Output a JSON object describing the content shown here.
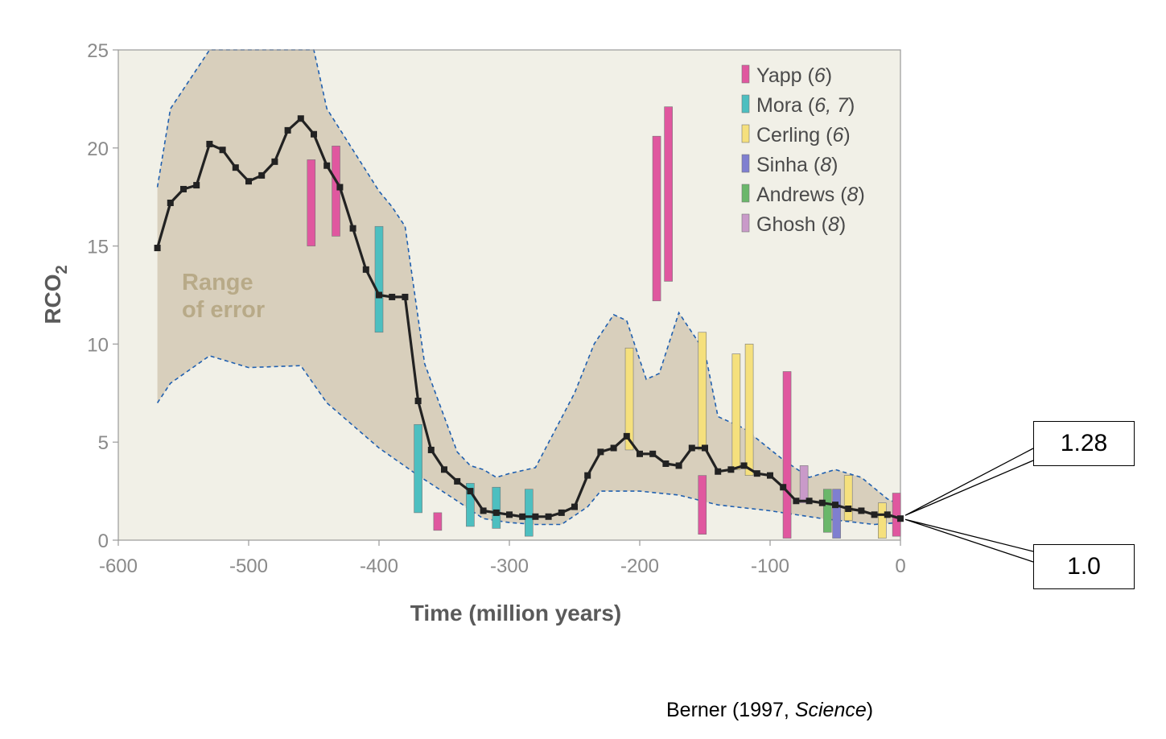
{
  "chart_data": {
    "type": "line",
    "xlabel": "Time (million years)",
    "ylabel_main": "RCO",
    "ylabel_sub": "2",
    "xlim": [
      -600,
      0
    ],
    "ylim": [
      0,
      25
    ],
    "xticks": [
      "-600",
      "-500",
      "-400",
      "-300",
      "-200",
      "-100",
      "0"
    ],
    "yticks": [
      "0",
      "5",
      "10",
      "15",
      "20",
      "25"
    ],
    "range_label": [
      "Range",
      "of error"
    ],
    "colors": {
      "plot_bg": "#f1f0e7",
      "band": "#d8cfbc",
      "line": "#222222",
      "dash": "#2060b0"
    },
    "series": [
      {
        "type": "line",
        "x": [
          -570,
          -560,
          -550,
          -540,
          -530,
          -520,
          -510,
          -500,
          -490,
          -480,
          -470,
          -460,
          -450,
          -440,
          -430,
          -420,
          -410,
          -400,
          -390,
          -380,
          -370,
          -360,
          -350,
          -340,
          -330,
          -320,
          -310,
          -300,
          -290,
          -280,
          -270,
          -260,
          -250,
          -240,
          -230,
          -220,
          -210,
          -200,
          -190,
          -180,
          -170,
          -160,
          -150,
          -140,
          -130,
          -120,
          -110,
          -100,
          -90,
          -80,
          -70,
          -60,
          -50,
          -40,
          -30,
          -20,
          -10,
          0
        ],
        "y": [
          14.9,
          17.2,
          17.9,
          18.1,
          20.2,
          19.9,
          19.0,
          18.3,
          18.6,
          19.3,
          20.9,
          21.5,
          20.7,
          19.1,
          18.0,
          15.9,
          13.8,
          12.5,
          12.4,
          12.4,
          7.1,
          4.6,
          3.6,
          3.0,
          2.5,
          1.5,
          1.4,
          1.3,
          1.2,
          1.2,
          1.2,
          1.4,
          1.7,
          3.3,
          4.5,
          4.7,
          5.3,
          4.4,
          4.4,
          3.9,
          3.8,
          4.7,
          4.7,
          3.5,
          3.6,
          3.8,
          3.4,
          3.3,
          2.7,
          2.0,
          2.0,
          1.9,
          1.8,
          1.6,
          1.5,
          1.3,
          1.3,
          1.1
        ]
      }
    ],
    "error_upper": {
      "x": [
        -570,
        -560,
        -530,
        -450,
        -440,
        -400,
        -390,
        -380,
        -365,
        -340,
        -330,
        -320,
        -310,
        -300,
        -280,
        -250,
        -235,
        -220,
        -210,
        -195,
        -185,
        -170,
        -150,
        -140,
        -120,
        -90,
        -70,
        -50,
        -30,
        -10,
        0
      ],
      "y": [
        18,
        22,
        25,
        25,
        22,
        17.8,
        17,
        16,
        9,
        4.5,
        3.8,
        3.6,
        3.2,
        3.4,
        3.7,
        7.5,
        10,
        11.5,
        11.2,
        8.2,
        8.5,
        11.6,
        9.6,
        6.3,
        5.7,
        4.1,
        3.2,
        3.6,
        3.2,
        2.1,
        1.8
      ]
    },
    "error_lower": {
      "x": [
        -570,
        -560,
        -530,
        -500,
        -460,
        -440,
        -400,
        -370,
        -340,
        -320,
        -300,
        -280,
        -260,
        -240,
        -230,
        -200,
        -170,
        -140,
        -100,
        -60,
        -20,
        0
      ],
      "y": [
        7,
        8,
        9.4,
        8.8,
        8.9,
        7,
        4.7,
        3.3,
        2,
        1.1,
        0.9,
        0.8,
        0.8,
        1.7,
        2.5,
        2.5,
        2.3,
        1.8,
        1.5,
        1.1,
        0.8,
        0.9
      ]
    },
    "proxy_bars": [
      {
        "x": -452,
        "y0": 15.0,
        "y1": 19.4,
        "color": "#e0579f"
      },
      {
        "x": -433,
        "y0": 15.5,
        "y1": 20.1,
        "color": "#e0579f"
      },
      {
        "x": -400,
        "y0": 10.6,
        "y1": 16.0,
        "color": "#4dbfc0"
      },
      {
        "x": -370,
        "y0": 1.4,
        "y1": 5.9,
        "color": "#4dbfc0"
      },
      {
        "x": -355,
        "y0": 0.5,
        "y1": 1.4,
        "color": "#e0579f"
      },
      {
        "x": -330,
        "y0": 0.7,
        "y1": 2.9,
        "color": "#4dbfc0"
      },
      {
        "x": -310,
        "y0": 0.6,
        "y1": 2.7,
        "color": "#4dbfc0"
      },
      {
        "x": -285,
        "y0": 0.2,
        "y1": 2.6,
        "color": "#4dbfc0"
      },
      {
        "x": -208,
        "y0": 4.6,
        "y1": 9.8,
        "color": "#f5e07d"
      },
      {
        "x": -187,
        "y0": 12.2,
        "y1": 20.6,
        "color": "#e0579f"
      },
      {
        "x": -178,
        "y0": 13.2,
        "y1": 22.1,
        "color": "#e0579f"
      },
      {
        "x": -152,
        "y0": 4.6,
        "y1": 10.6,
        "color": "#f5e07d"
      },
      {
        "x": -152,
        "y0": 0.3,
        "y1": 3.3,
        "color": "#e0579f"
      },
      {
        "x": -126,
        "y0": 3.6,
        "y1": 9.5,
        "color": "#f5e07d"
      },
      {
        "x": -116,
        "y0": 3.3,
        "y1": 10.0,
        "color": "#f5e07d"
      },
      {
        "x": -87,
        "y0": 0.1,
        "y1": 8.6,
        "color": "#e0579f"
      },
      {
        "x": -74,
        "y0": 1.9,
        "y1": 3.8,
        "color": "#c99ac9"
      },
      {
        "x": -56,
        "y0": 0.4,
        "y1": 2.6,
        "color": "#6ab76a"
      },
      {
        "x": -49,
        "y0": 0.1,
        "y1": 2.6,
        "color": "#7f7fd0"
      },
      {
        "x": -40,
        "y0": 1.0,
        "y1": 3.3,
        "color": "#f5e07d"
      },
      {
        "x": -14,
        "y0": 0.1,
        "y1": 1.9,
        "color": "#f5e07d"
      },
      {
        "x": -3,
        "y0": 0.2,
        "y1": 2.4,
        "color": "#e0579f"
      }
    ],
    "legend": {
      "placement": "top-right",
      "entries": [
        {
          "name": "Yapp",
          "ref": "6",
          "color": "#e0579f"
        },
        {
          "name": "Mora",
          "ref": "6, 7",
          "color": "#4dbfc0"
        },
        {
          "name": "Cerling",
          "ref": "6",
          "color": "#f5e07d"
        },
        {
          "name": "Sinha",
          "ref": "8",
          "color": "#7f7fd0"
        },
        {
          "name": "Andrews",
          "ref": "8",
          "color": "#6ab76a"
        },
        {
          "name": "Ghosh",
          "ref": "8",
          "color": "#c99ac9"
        }
      ]
    }
  },
  "annotations": {
    "top_value": "1.28",
    "bottom_value": "1.0"
  },
  "source": {
    "prefix": "Berner (1997, ",
    "journal": "Science",
    "suffix": ")"
  }
}
